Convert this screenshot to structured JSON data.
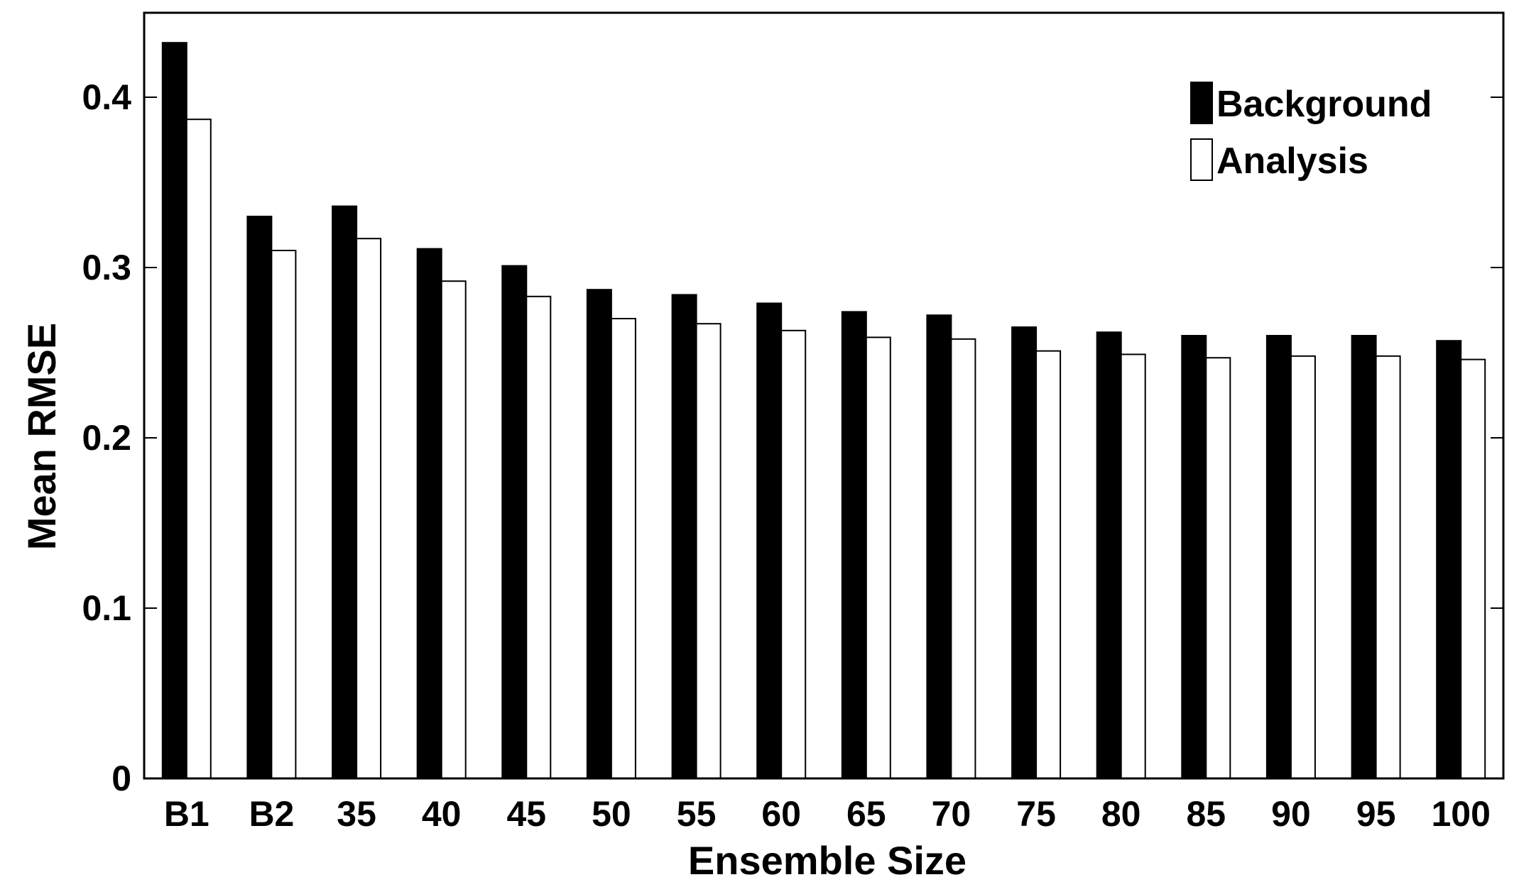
{
  "chart_data": {
    "type": "bar",
    "xlabel": "Ensemble Size",
    "ylabel": "Mean RMSE",
    "ylim": [
      0,
      0.45
    ],
    "yticks": [
      "0",
      "0.1",
      "0.2",
      "0.3",
      "0.4"
    ],
    "ytick_values": [
      0,
      0.1,
      0.2,
      0.3,
      0.4
    ],
    "categories": [
      "B1",
      "B2",
      "35",
      "40",
      "45",
      "50",
      "55",
      "60",
      "65",
      "70",
      "75",
      "80",
      "85",
      "90",
      "95",
      "100"
    ],
    "legend_position": "top-right",
    "grid": false,
    "series": [
      {
        "name": "Background",
        "color": "#000000",
        "values": [
          0.432,
          0.33,
          0.336,
          0.311,
          0.301,
          0.287,
          0.284,
          0.279,
          0.274,
          0.272,
          0.265,
          0.262,
          0.26,
          0.26,
          0.26,
          0.257
        ]
      },
      {
        "name": "Analysis",
        "color": "#ffffff",
        "values": [
          0.387,
          0.31,
          0.317,
          0.292,
          0.283,
          0.27,
          0.267,
          0.263,
          0.259,
          0.258,
          0.251,
          0.249,
          0.247,
          0.248,
          0.248,
          0.246
        ]
      }
    ]
  }
}
